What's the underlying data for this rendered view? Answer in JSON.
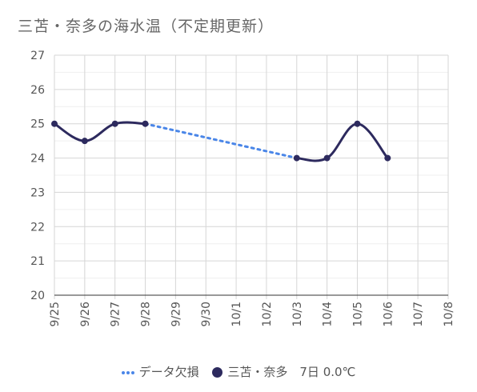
{
  "chart_data": {
    "type": "line",
    "title": "三苫・奈多の海水温（不定期更新）",
    "xlabel": "",
    "ylabel": "",
    "categories": [
      "9/25",
      "9/26",
      "9/27",
      "9/28",
      "9/29",
      "9/30",
      "10/1",
      "10/2",
      "10/3",
      "10/4",
      "10/5",
      "10/6",
      "10/7",
      "10/8"
    ],
    "ylim": [
      20,
      27
    ],
    "yticks": [
      "20",
      "21",
      "22",
      "23",
      "24",
      "25",
      "26",
      "27"
    ],
    "grid": true,
    "legend_position": "bottom",
    "series": [
      {
        "name": "三苫・奈多　7日 0.0℃",
        "color": "#2d2a5e",
        "style": "solid-smooth",
        "values": [
          25,
          24.5,
          25,
          25,
          null,
          null,
          null,
          null,
          24,
          24,
          25,
          24,
          null,
          null
        ]
      },
      {
        "name": "データ欠損",
        "color": "#4a86e8",
        "style": "dotted",
        "values": [
          null,
          null,
          null,
          25,
          null,
          null,
          null,
          null,
          24,
          null,
          null,
          null,
          null,
          null
        ]
      }
    ]
  }
}
